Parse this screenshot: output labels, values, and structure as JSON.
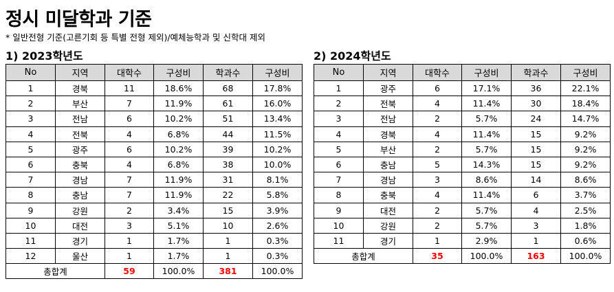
{
  "title": "정시 미달학과 기준",
  "note": "* 일반전형 기준(고른기회 등 특별 전형 제외)/예체능학과 및 신학대 제외",
  "columns": [
    "No",
    "지역",
    "대학수",
    "구성비",
    "학과수",
    "구성비"
  ],
  "sections": [
    {
      "heading": "1) 2023학년도",
      "rows": [
        [
          "1",
          "경북",
          "11",
          "18.6%",
          "68",
          "17.8%"
        ],
        [
          "2",
          "부산",
          "7",
          "11.9%",
          "61",
          "16.0%"
        ],
        [
          "3",
          "전남",
          "6",
          "10.2%",
          "51",
          "13.4%"
        ],
        [
          "4",
          "전북",
          "4",
          "6.8%",
          "44",
          "11.5%"
        ],
        [
          "5",
          "광주",
          "6",
          "10.2%",
          "39",
          "10.2%"
        ],
        [
          "6",
          "충북",
          "4",
          "6.8%",
          "38",
          "10.0%"
        ],
        [
          "7",
          "경남",
          "7",
          "11.9%",
          "31",
          "8.1%"
        ],
        [
          "8",
          "충남",
          "7",
          "11.9%",
          "22",
          "5.8%"
        ],
        [
          "9",
          "강원",
          "2",
          "3.4%",
          "15",
          "3.9%"
        ],
        [
          "10",
          "대전",
          "3",
          "5.1%",
          "10",
          "2.6%"
        ],
        [
          "11",
          "경기",
          "1",
          "1.7%",
          "1",
          "0.3%"
        ],
        [
          "12",
          "울산",
          "1",
          "1.7%",
          "1",
          "0.3%"
        ]
      ],
      "total": {
        "label": "총합계",
        "univ": "59",
        "univ_pct": "100.0%",
        "dept": "381",
        "dept_pct": "100.0%"
      }
    },
    {
      "heading": "2) 2024학년도",
      "rows": [
        [
          "1",
          "광주",
          "6",
          "17.1%",
          "36",
          "22.1%"
        ],
        [
          "2",
          "전북",
          "4",
          "11.4%",
          "30",
          "18.4%"
        ],
        [
          "3",
          "전남",
          "2",
          "5.7%",
          "24",
          "14.7%"
        ],
        [
          "4",
          "경북",
          "4",
          "11.4%",
          "15",
          "9.2%"
        ],
        [
          "5",
          "부산",
          "2",
          "5.7%",
          "15",
          "9.2%"
        ],
        [
          "6",
          "충남",
          "5",
          "14.3%",
          "15",
          "9.2%"
        ],
        [
          "7",
          "경남",
          "3",
          "8.6%",
          "14",
          "8.6%"
        ],
        [
          "8",
          "충북",
          "4",
          "11.4%",
          "6",
          "3.7%"
        ],
        [
          "9",
          "대전",
          "2",
          "5.7%",
          "4",
          "2.5%"
        ],
        [
          "10",
          "강원",
          "2",
          "5.7%",
          "3",
          "1.8%"
        ],
        [
          "11",
          "경기",
          "1",
          "2.9%",
          "1",
          "0.6%"
        ]
      ],
      "total": {
        "label": "총합계",
        "univ": "35",
        "univ_pct": "100.0%",
        "dept": "163",
        "dept_pct": "100.0%"
      }
    }
  ],
  "colors": {
    "header_bg": "#d9d9d9",
    "total_highlight": "#ff0000"
  }
}
